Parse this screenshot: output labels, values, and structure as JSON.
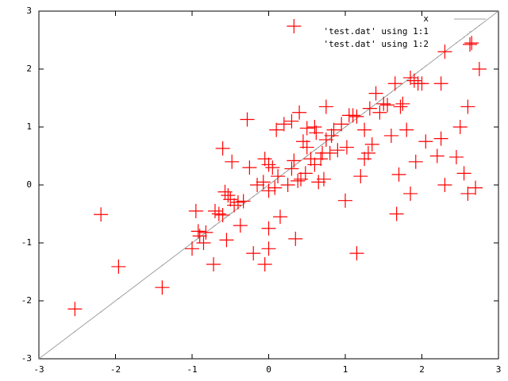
{
  "chart_data": {
    "type": "scatter",
    "xlim": [
      -3,
      3
    ],
    "ylim": [
      -3,
      3
    ],
    "xticks": [
      -3,
      -2,
      -1,
      0,
      1,
      2,
      3
    ],
    "yticks": [
      -3,
      -2,
      -1,
      0,
      1,
      2,
      3
    ],
    "grid": false,
    "legend": "top-right",
    "series": [
      {
        "name": "x",
        "color": "#a0a0a0",
        "style": "line",
        "x": [
          -3,
          3
        ],
        "values": [
          -3,
          3
        ]
      },
      {
        "name": "'test.dat' using 1:1",
        "color": "#a0a0a0",
        "style": "dot",
        "x": [
          -1.0,
          -0.95,
          -0.92,
          -0.9,
          -0.85,
          -0.82,
          -0.72,
          -0.7,
          -0.65,
          -0.6,
          -0.6,
          -0.57,
          -0.55,
          -0.53,
          -0.5,
          -0.48,
          -0.45,
          -0.4,
          -0.37,
          -0.33,
          -0.28,
          -0.25,
          -0.2,
          -0.15,
          -0.07,
          -0.05,
          -0.05,
          0.0,
          0.0,
          0.0,
          0.0,
          0.05,
          0.08,
          0.1,
          0.12,
          0.15,
          0.2,
          0.25,
          0.3,
          0.3,
          0.33,
          0.35,
          0.38,
          0.4,
          0.42,
          0.45,
          0.48,
          0.5,
          0.5,
          0.55,
          0.6,
          0.6,
          0.62,
          0.65,
          0.68,
          0.7,
          0.72,
          0.75,
          0.75,
          0.8,
          0.82,
          0.85,
          0.9,
          0.95,
          1.0,
          1.02,
          1.05,
          1.1,
          1.15,
          1.15,
          1.2,
          1.25,
          1.25,
          1.3,
          1.32,
          1.35,
          1.4,
          1.45,
          1.5,
          1.55,
          1.6,
          1.65,
          1.67,
          1.7,
          1.72,
          1.75,
          1.8,
          1.85,
          1.85,
          1.9,
          1.92,
          1.95,
          2.0,
          2.05,
          2.2,
          2.25,
          2.25,
          2.3,
          2.3,
          2.45,
          2.5,
          2.55,
          2.6,
          2.6,
          2.65,
          2.7,
          2.75,
          0.33,
          -2.53,
          -2.19,
          -1.96,
          -1.39
        ],
        "values": [
          -1.0,
          -0.95,
          -0.92,
          -0.9,
          -0.85,
          -0.82,
          -0.72,
          -0.7,
          -0.65,
          -0.6,
          -0.6,
          -0.57,
          -0.55,
          -0.53,
          -0.5,
          -0.48,
          -0.45,
          -0.4,
          -0.37,
          -0.33,
          -0.28,
          -0.25,
          -0.2,
          -0.15,
          -0.07,
          -0.05,
          -0.05,
          0.0,
          0.0,
          0.0,
          0.0,
          0.05,
          0.08,
          0.1,
          0.12,
          0.15,
          0.2,
          0.25,
          0.3,
          0.3,
          0.33,
          0.35,
          0.38,
          0.4,
          0.42,
          0.45,
          0.48,
          0.5,
          0.5,
          0.55,
          0.6,
          0.6,
          0.62,
          0.65,
          0.68,
          0.7,
          0.72,
          0.75,
          0.75,
          0.8,
          0.82,
          0.85,
          0.9,
          0.95,
          1.0,
          1.02,
          1.05,
          1.1,
          1.15,
          1.15,
          1.2,
          1.25,
          1.25,
          1.3,
          1.32,
          1.35,
          1.4,
          1.45,
          1.5,
          1.55,
          1.6,
          1.65,
          1.67,
          1.7,
          1.72,
          1.75,
          1.8,
          1.85,
          1.85,
          1.9,
          1.92,
          1.95,
          2.0,
          2.05,
          2.2,
          2.25,
          2.25,
          2.3,
          2.3,
          2.45,
          2.5,
          2.55,
          2.6,
          2.6,
          2.65,
          2.7,
          2.75,
          0.33,
          -2.53,
          -2.19,
          -1.96,
          -1.39
        ]
      },
      {
        "name": "'test.dat' using 1:2",
        "color": "#ff0000",
        "style": "cross",
        "x": [
          -1.0,
          -0.95,
          -0.92,
          -0.9,
          -0.85,
          -0.82,
          -0.72,
          -0.7,
          -0.65,
          -0.6,
          -0.6,
          -0.57,
          -0.55,
          -0.53,
          -0.5,
          -0.48,
          -0.45,
          -0.4,
          -0.37,
          -0.33,
          -0.28,
          -0.25,
          -0.2,
          -0.15,
          -0.07,
          -0.05,
          -0.05,
          0.0,
          0.0,
          0.0,
          0.0,
          0.05,
          0.08,
          0.1,
          0.12,
          0.15,
          0.2,
          0.25,
          0.3,
          0.3,
          0.33,
          0.35,
          0.38,
          0.4,
          0.42,
          0.45,
          0.48,
          0.5,
          0.5,
          0.55,
          0.6,
          0.6,
          0.62,
          0.65,
          0.68,
          0.7,
          0.72,
          0.75,
          0.75,
          0.8,
          0.82,
          0.85,
          0.9,
          0.95,
          1.0,
          1.02,
          1.05,
          1.1,
          1.15,
          1.15,
          1.2,
          1.25,
          1.25,
          1.3,
          1.32,
          1.35,
          1.4,
          1.45,
          1.5,
          1.55,
          1.6,
          1.65,
          1.67,
          1.7,
          1.72,
          1.75,
          1.8,
          1.85,
          1.85,
          1.9,
          1.92,
          1.95,
          2.0,
          2.05,
          2.2,
          2.25,
          2.25,
          2.3,
          2.3,
          2.45,
          2.5,
          2.55,
          2.6,
          2.6,
          2.65,
          2.7,
          2.75,
          0.33,
          -2.53,
          -2.19,
          -1.96,
          -1.39
        ],
        "values": [
          -1.1,
          -0.45,
          -0.8,
          -0.88,
          -1.0,
          -0.82,
          -1.37,
          -0.45,
          -0.5,
          -0.52,
          0.63,
          -0.12,
          -0.95,
          -0.18,
          -0.25,
          0.4,
          -0.35,
          -0.3,
          -0.7,
          -0.28,
          1.13,
          0.3,
          -1.18,
          0.0,
          0.05,
          0.45,
          -1.37,
          -0.1,
          0.35,
          -1.1,
          -0.75,
          0.3,
          -0.05,
          0.95,
          0.15,
          -0.55,
          1.05,
          0.0,
          1.1,
          0.28,
          0.42,
          -0.93,
          0.07,
          1.25,
          0.1,
          0.75,
          0.2,
          0.65,
          0.98,
          0.45,
          0.35,
          1.0,
          0.9,
          0.05,
          0.45,
          0.55,
          0.1,
          1.35,
          0.78,
          0.55,
          0.85,
          0.95,
          0.6,
          1.05,
          -0.27,
          0.65,
          1.2,
          1.2,
          1.18,
          -1.18,
          0.15,
          0.95,
          0.45,
          0.55,
          1.32,
          0.7,
          1.58,
          1.25,
          1.4,
          1.38,
          0.85,
          1.75,
          -0.5,
          0.18,
          1.35,
          1.4,
          0.95,
          1.85,
          -0.15,
          1.8,
          0.4,
          1.75,
          1.75,
          0.75,
          0.5,
          1.75,
          0.8,
          0.0,
          2.3,
          0.48,
          1.0,
          0.2,
          1.35,
          -0.15,
          2.45,
          -0.05,
          2.0,
          2.74,
          -2.14,
          -0.51,
          -1.41,
          -1.77
        ]
      }
    ]
  }
}
